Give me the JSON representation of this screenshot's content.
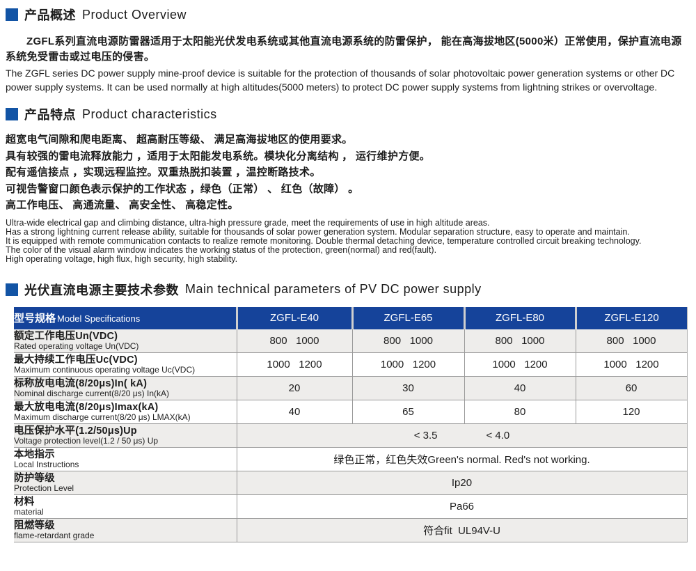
{
  "colors": {
    "accent_blue": "#1254a5",
    "table_header_blue": "#15439a",
    "row_alt": "#eeedeb"
  },
  "sections": {
    "overview": {
      "title_zh": "产品概述",
      "title_en": "Product Overview",
      "body_zh": "ZGFL系列直流电源防雷器适用于太阳能光伏发电系统或其他直流电源系统的防雷保护， 能在高海拔地区(5000米）正常使用，保护直流电源系统免受雷击或过电压的侵害。",
      "body_en": "The ZGFL series DC power supply mine-proof device is suitable for the protection of thousands of solar photovoltaic power generation systems or other DC power supply systems. It can be used normally at high altitudes(5000 meters) to protect DC power supply systems from lightning strikes or overvoltage."
    },
    "characteristics": {
      "title_zh": "产品特点",
      "title_en": "Product characteristics",
      "features_zh": [
        "超宽电气间隙和爬电距离、 超高耐压等级、 满足高海拔地区的使用要求。",
        "具有较强的雷电流释放能力 ，适用于太阳能发电系统。模块化分离结构 ， 运行维护方便。",
        "配有遥信接点 ，实现远程监控。双重热脱扣装置 ，温控断路技术。",
        "可视告警窗口颜色表示保护的工作状态 ，绿色（正常） 、 红色（故障） 。",
        "高工作电压、 高通流量、 高安全性、 高稳定性。"
      ],
      "features_en": [
        "Ultra-wide electrical gap and climbing distance, ultra-high pressure grade, meet the requirements of use in high altitude areas.",
        "Has a strong lightning current release ability, suitable for thousands of solar power generation system. Modular separation structure, easy to operate and maintain.",
        "It is equipped with remote communication contacts to realize remote monitoring. Double thermal detaching device, temperature controlled circuit breaking technology.",
        "The color of the visual alarm window indicates the working status of the protection, green(normal) and red(fault).",
        "High operating voltage, high flux, high security, high stability."
      ]
    },
    "parameters": {
      "title_zh": "光伏直流电源主要技术参数",
      "title_en": "Main technical parameters of PV DC power supply",
      "table": {
        "header": {
          "label_zh": "型号规格",
          "label_en": "Model Specifications",
          "models": [
            "ZGFL-E40",
            "ZGFL-E65",
            "ZGFL-E80",
            "ZGFL-E120"
          ]
        },
        "rows": [
          {
            "label_zh": "额定工作电压Un(VDC)",
            "label_en": "Rated operating voltage Un(VDC)",
            "type": "cols",
            "values": [
              "800   1000",
              "800   1000",
              "800   1000",
              "800   1000"
            ]
          },
          {
            "label_zh": "最大持续工作电压Uc(VDC)",
            "label_en": "Maximum continuous operating voltage Uc(VDC)",
            "type": "cols",
            "values": [
              "1000   1200",
              "1000   1200",
              "1000   1200",
              "1000   1200"
            ]
          },
          {
            "label_zh": "标称放电电流(8/20μs)In( kA)",
            "label_en": "Nominal discharge current(8/20 μs) In(kA)",
            "type": "cols",
            "values": [
              "20",
              "30",
              "40",
              "60"
            ]
          },
          {
            "label_zh": "最大放电电流(8/20μs)Imax(kA)",
            "label_en": "Maximum discharge current(8/20 μs) LMAX(kA)",
            "type": "cols",
            "values": [
              "40",
              "65",
              "80",
              "120"
            ]
          },
          {
            "label_zh": "电压保护水平(1.2/50μs)Up",
            "label_en": "Voltage protection level(1.2 / 50 μs) Up",
            "type": "merged",
            "values": [
              "< 3.5",
              "< 4.0"
            ]
          },
          {
            "label_zh": "本地指示",
            "label_en": "Local Instructions",
            "type": "merged",
            "values": [
              "绿色正常，红色失效Green's normal. Red's not working."
            ]
          },
          {
            "label_zh": "防护等级",
            "label_en": "Protection Level",
            "type": "merged",
            "values": [
              "Ip20"
            ]
          },
          {
            "label_zh": "材料",
            "label_en": "material",
            "type": "merged",
            "values": [
              "Pa66"
            ]
          },
          {
            "label_zh": "阻燃等级",
            "label_en": "flame-retardant grade",
            "type": "merged",
            "values": [
              "符合fit  UL94V-U"
            ]
          }
        ]
      }
    }
  }
}
